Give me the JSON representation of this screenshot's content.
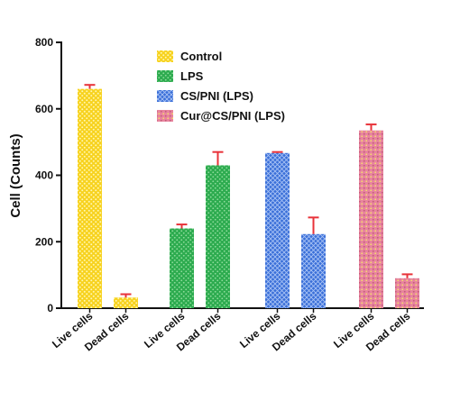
{
  "chart_data": {
    "type": "bar",
    "title": "",
    "xlabel": "",
    "ylabel": "Cell (Counts)",
    "ylim": [
      0,
      800
    ],
    "yticks": [
      0,
      200,
      400,
      600,
      800
    ],
    "grid": false,
    "legend_position": "top-center",
    "error_bar_color": "#e8333a",
    "series": [
      {
        "name": "Control",
        "color": "#f7d21e",
        "pattern": "yellow-dots",
        "values": [
          660,
          32
        ],
        "errors": [
          12,
          10
        ]
      },
      {
        "name": "LPS",
        "color": "#2dab4f",
        "pattern": "green-dots",
        "values": [
          240,
          430
        ],
        "errors": [
          12,
          40
        ]
      },
      {
        "name": "CS/PNI (LPS)",
        "color": "#3a6fd8",
        "pattern": "blue-crosshatch",
        "values": [
          467,
          223
        ],
        "errors": [
          3,
          50
        ]
      },
      {
        "name": "Cur@CS/PNI (LPS)",
        "color": "#e8849e",
        "pattern": "pink-dots",
        "values": [
          535,
          90
        ],
        "errors": [
          18,
          12
        ]
      }
    ],
    "bar_labels": [
      "Live cells",
      "Dead cells"
    ]
  }
}
